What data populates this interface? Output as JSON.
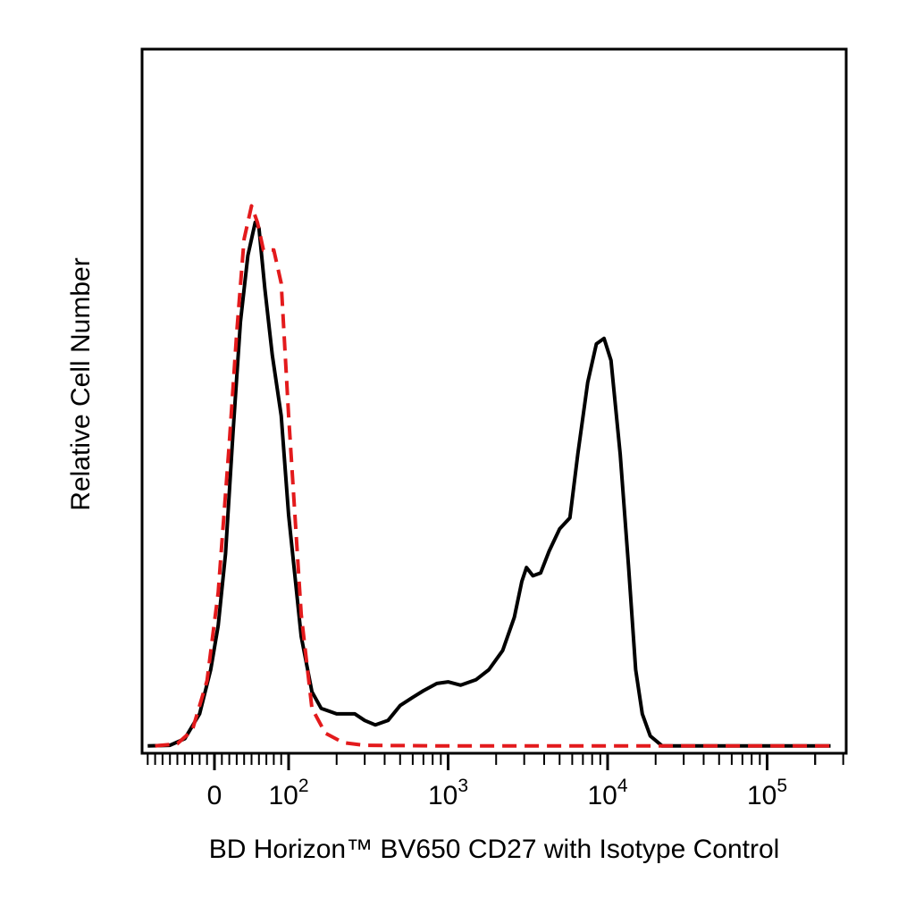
{
  "chart_data": {
    "type": "line",
    "xlabel": "BD Horizon™ BV650 CD27 with Isotype Control",
    "ylabel": "Relative Cell Number",
    "x_scale": "biexponential",
    "x_ticks": [
      {
        "value": 0,
        "label": "0",
        "exp": ""
      },
      {
        "value": 100,
        "label": "10",
        "exp": "2"
      },
      {
        "value": 1000,
        "label": "10",
        "exp": "3"
      },
      {
        "value": 10000,
        "label": "10",
        "exp": "4"
      },
      {
        "value": 100000,
        "label": "10",
        "exp": "5"
      }
    ],
    "xlim": [
      -100,
      250000
    ],
    "ylim": [
      0,
      100
    ],
    "grid": false,
    "series": [
      {
        "line_style": "solid",
        "color": "#000000",
        "points": [
          [
            -90,
            0.2
          ],
          [
            -60,
            0.3
          ],
          [
            -40,
            1.5
          ],
          [
            -20,
            6
          ],
          [
            -5,
            14
          ],
          [
            5,
            22
          ],
          [
            15,
            35
          ],
          [
            25,
            57
          ],
          [
            35,
            77
          ],
          [
            45,
            89
          ],
          [
            55,
            95
          ],
          [
            60,
            94
          ],
          [
            68,
            83
          ],
          [
            78,
            71
          ],
          [
            90,
            60
          ],
          [
            100,
            42
          ],
          [
            120,
            20
          ],
          [
            140,
            10
          ],
          [
            160,
            7
          ],
          [
            200,
            6
          ],
          [
            260,
            6
          ],
          [
            300,
            4.8
          ],
          [
            350,
            4.0
          ],
          [
            420,
            4.8
          ],
          [
            500,
            7.5
          ],
          [
            600,
            9
          ],
          [
            700,
            10.2
          ],
          [
            850,
            11.5
          ],
          [
            1000,
            11.8
          ],
          [
            1200,
            11.2
          ],
          [
            1500,
            12.2
          ],
          [
            1800,
            14
          ],
          [
            2200,
            17.5
          ],
          [
            2600,
            23.5
          ],
          [
            2900,
            30
          ],
          [
            3100,
            32.5
          ],
          [
            3400,
            31
          ],
          [
            3800,
            31.5
          ],
          [
            4300,
            35.5
          ],
          [
            5000,
            39.5
          ],
          [
            5800,
            41.5
          ],
          [
            6500,
            53
          ],
          [
            7500,
            66
          ],
          [
            8500,
            73
          ],
          [
            9500,
            74
          ],
          [
            10500,
            70
          ],
          [
            12000,
            53
          ],
          [
            13500,
            33
          ],
          [
            15000,
            14
          ],
          [
            16500,
            6
          ],
          [
            18500,
            2
          ],
          [
            22000,
            0.2
          ],
          [
            40000,
            0.2
          ],
          [
            100000,
            0.2
          ],
          [
            250000,
            0.2
          ]
        ]
      },
      {
        "line_style": "dashed",
        "color": "#e31a1c",
        "points": [
          [
            -80,
            0.2
          ],
          [
            -50,
            0.6
          ],
          [
            -30,
            3
          ],
          [
            -10,
            12
          ],
          [
            5,
            28
          ],
          [
            20,
            55
          ],
          [
            30,
            75
          ],
          [
            40,
            92
          ],
          [
            50,
            98
          ],
          [
            58,
            95
          ],
          [
            66,
            90
          ],
          [
            80,
            90
          ],
          [
            90,
            84
          ],
          [
            100,
            60
          ],
          [
            120,
            24
          ],
          [
            140,
            7
          ],
          [
            170,
            2.5
          ],
          [
            220,
            0.8
          ],
          [
            300,
            0.3
          ],
          [
            1000,
            0.2
          ],
          [
            100000,
            0.2
          ],
          [
            250000,
            0.2
          ]
        ]
      }
    ]
  }
}
